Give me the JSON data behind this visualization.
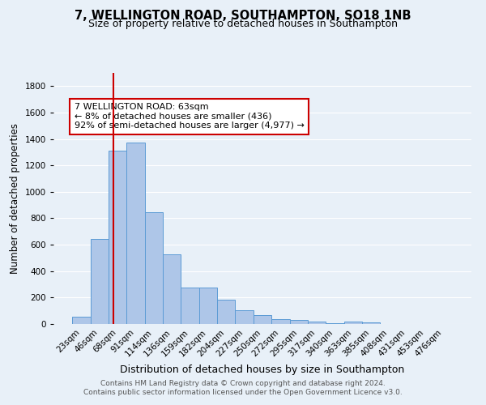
{
  "title": "7, WELLINGTON ROAD, SOUTHAMPTON, SO18 1NB",
  "subtitle": "Size of property relative to detached houses in Southampton",
  "xlabel": "Distribution of detached houses by size in Southampton",
  "ylabel": "Number of detached properties",
  "footnote1": "Contains HM Land Registry data © Crown copyright and database right 2024.",
  "footnote2": "Contains public sector information licensed under the Open Government Licence v3.0.",
  "bin_labels": [
    "23sqm",
    "46sqm",
    "68sqm",
    "91sqm",
    "114sqm",
    "136sqm",
    "159sqm",
    "182sqm",
    "204sqm",
    "227sqm",
    "250sqm",
    "272sqm",
    "295sqm",
    "317sqm",
    "340sqm",
    "363sqm",
    "385sqm",
    "408sqm",
    "431sqm",
    "453sqm",
    "476sqm"
  ],
  "bar_values": [
    55,
    645,
    1310,
    1375,
    845,
    530,
    275,
    275,
    185,
    105,
    65,
    35,
    30,
    18,
    8,
    20,
    12,
    0,
    0,
    0,
    0
  ],
  "bar_color": "#aec6e8",
  "bar_edge_color": "#5b9bd5",
  "vline_color": "#cc0000",
  "annotation_text": "7 WELLINGTON ROAD: 63sqm\n← 8% of detached houses are smaller (436)\n92% of semi-detached houses are larger (4,977) →",
  "annotation_box_color": "#ffffff",
  "annotation_box_edge": "#cc0000",
  "ylim": [
    0,
    1900
  ],
  "background_color": "#e8f0f8",
  "grid_color": "#ffffff",
  "title_fontsize": 10.5,
  "subtitle_fontsize": 9,
  "xlabel_fontsize": 9,
  "ylabel_fontsize": 8.5,
  "tick_fontsize": 7.5,
  "annotation_fontsize": 8,
  "footnote_fontsize": 6.5
}
